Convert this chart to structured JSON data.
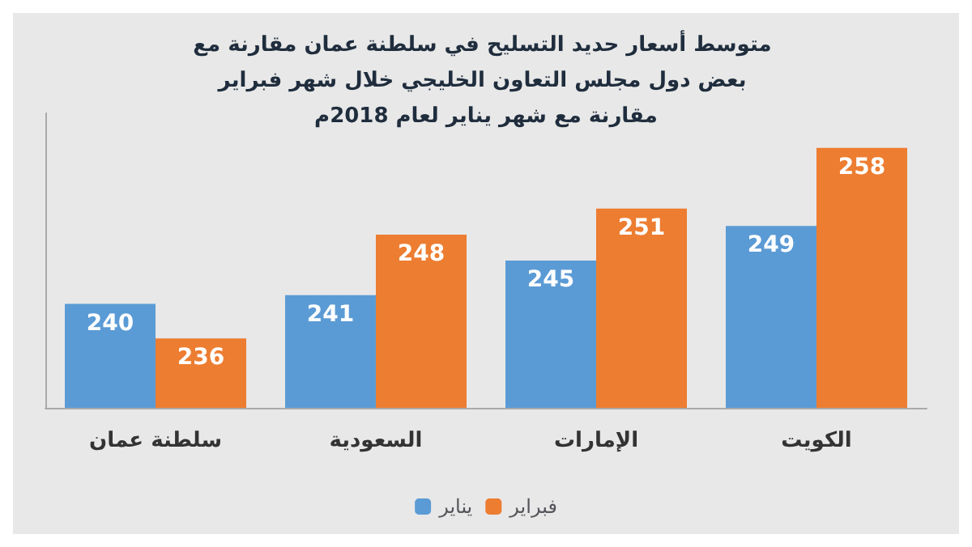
{
  "chart_data": {
    "type": "bar",
    "title": "متوسط أسعار حديد التسليح في سلطنة عمان مقارنة مع بعض دول مجلس التعاون الخليجي خلال شهر فبراير مقارنة مع شهر يناير لعام 2018م",
    "categories": [
      "سلطنة عمان",
      "السعودية",
      "الإمارات",
      "الكويت"
    ],
    "series": [
      {
        "name": "يناير",
        "color": "#5b9bd5",
        "values": [
          240,
          241,
          245,
          249
        ]
      },
      {
        "name": "فبراير",
        "color": "#ed7d31",
        "values": [
          236,
          248,
          251,
          258
        ]
      }
    ],
    "ylim": [
      228,
      262
    ],
    "data_labels": true,
    "legend": "bottom",
    "grid": false
  }
}
